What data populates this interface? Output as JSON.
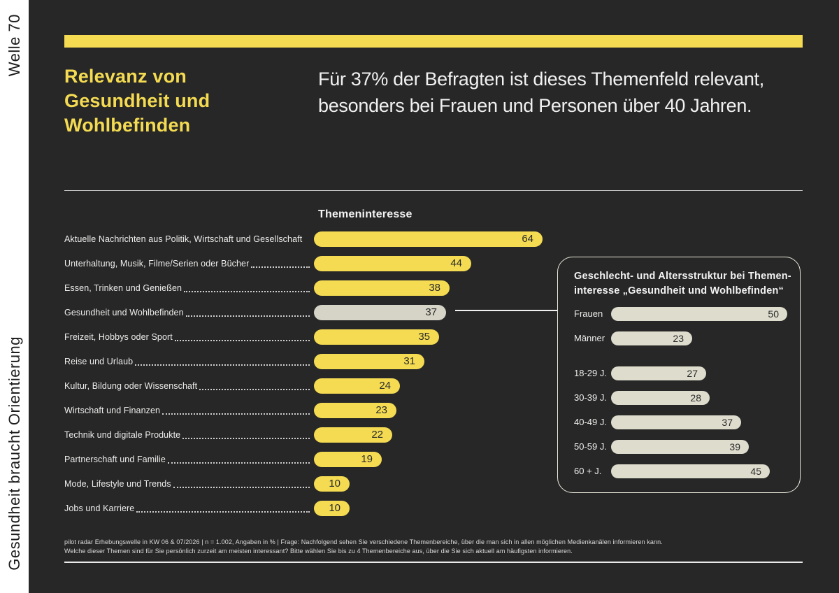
{
  "sidebar": {
    "top_label": "Welle 70",
    "bottom_label": "Gesundheit braucht Orientierung"
  },
  "header": {
    "title_lines": [
      "Relevanz von",
      "Gesundheit und",
      "Wohlbefinden"
    ],
    "subtitle_lines": [
      "Für 37% der Befragten ist dieses Themenfeld relevant,",
      "besonders bei Frauen und Personen über 40 Jahren."
    ]
  },
  "colors": {
    "background": "#272727",
    "accent_yellow": "#F4DB52",
    "highlight_bar": "#D6D4C6",
    "panel_bar": "#DEDCCD",
    "sidebar_bg": "#FFFFFF"
  },
  "chart_data": [
    {
      "id": "themeninteresse",
      "type": "bar",
      "orientation": "horizontal",
      "title": "Themeninteresse",
      "unit": "%",
      "categories": [
        "Aktuelle Nachrichten aus Politik, Wirtschaft und Gesellschaft",
        "Unterhaltung, Musik, Filme/Serien oder Bücher",
        "Essen, Trinken und Genießen",
        "Gesundheit und Wohlbefinden",
        "Freizeit, Hobbys oder Sport",
        "Reise und Urlaub",
        "Kultur, Bildung oder Wissenschaft",
        "Wirtschaft und Finanzen",
        "Technik und digitale Produkte",
        "Partnerschaft und Familie",
        "Mode, Lifestyle und Trends",
        "Jobs und Karriere"
      ],
      "values": [
        64,
        44,
        38,
        37,
        35,
        31,
        24,
        23,
        22,
        19,
        10,
        10
      ],
      "highlight_category": "Gesundheit und Wohlbefinden",
      "bar_color": "#F4DB52",
      "highlight_color": "#D6D4C6",
      "xlim": [
        0,
        70
      ],
      "grid": false,
      "legend": false
    },
    {
      "id": "geschlecht-altersstruktur",
      "type": "bar",
      "orientation": "horizontal",
      "title_lines": [
        "Geschlecht- und Altersstruktur bei Themen-",
        "interesse „Gesundheit und Wohlbefinden“"
      ],
      "unit": "%",
      "categories": [
        "Frauen",
        "Männer",
        "18-29 J.",
        "30-39 J.",
        "40-49 J.",
        "50-59 J.",
        "60 + J."
      ],
      "values": [
        50,
        23,
        27,
        28,
        37,
        39,
        45
      ],
      "group_break_after_index": 1,
      "bar_color": "#DEDCCD",
      "xlim": [
        0,
        55
      ],
      "grid": false,
      "legend": false
    }
  ],
  "footer": {
    "lines": [
      "pilot radar Erhebungswelle in KW 06 & 07/2026 | n = 1.002, Angaben in % | Frage: Nachfolgend sehen Sie verschiedene Themenbereiche, über die man sich in allen möglichen Medienkanälen informieren kann.",
      "Welche dieser Themen sind für Sie persönlich zurzeit am meisten interessant? Bitte wählen Sie bis zu 4 Themenbereiche aus, über die Sie sich aktuell am häufigsten informieren."
    ]
  }
}
